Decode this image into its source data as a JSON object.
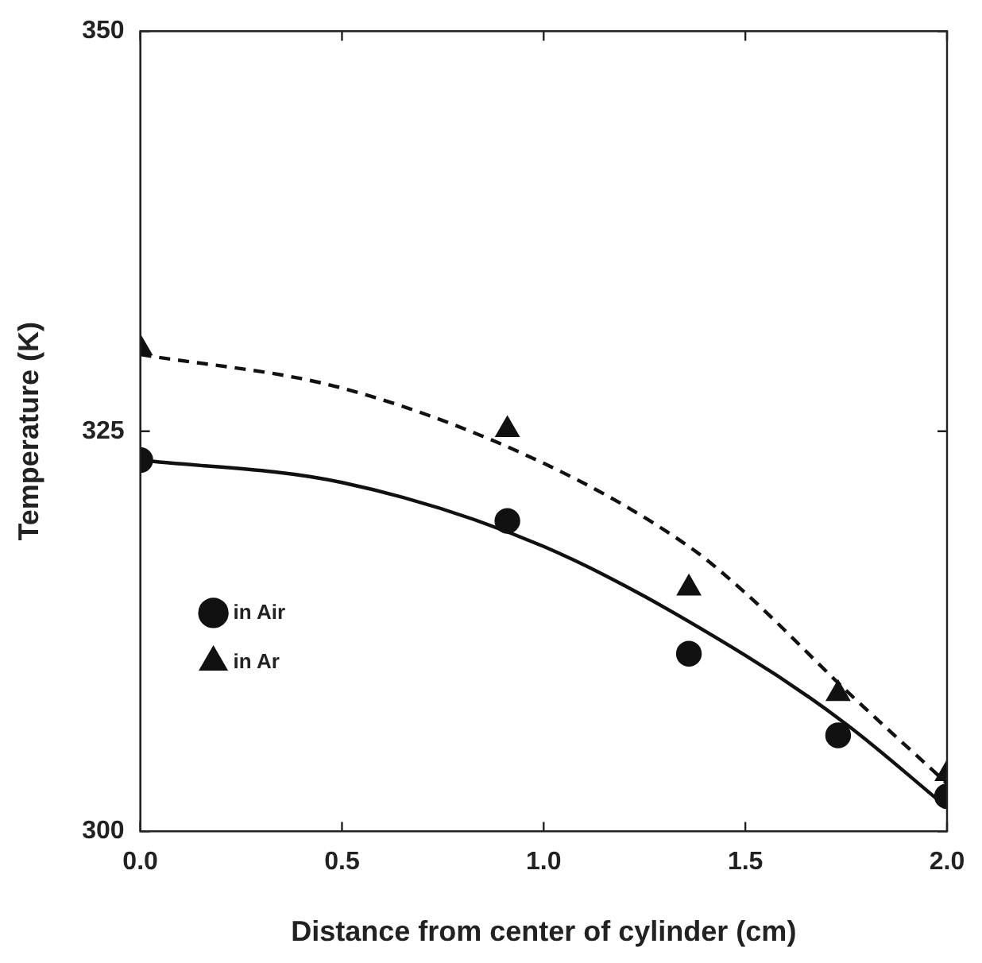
{
  "chart_data": {
    "type": "scatter",
    "xlabel": "Distance from center of cylinder (cm)",
    "ylabel": "Temperature (K)",
    "xlim": [
      0,
      2
    ],
    "xticks": [
      {
        "value": 0,
        "label": "0.0"
      },
      {
        "value": 0.5,
        "label": "0.5"
      },
      {
        "value": 1,
        "label": "1.0"
      },
      {
        "value": 1.5,
        "label": "1.5"
      },
      {
        "value": 2,
        "label": "2.0"
      }
    ],
    "ylim": [
      300,
      350
    ],
    "yticks": [
      300,
      325,
      350
    ],
    "grid": false,
    "legend": "bottom left",
    "series": [
      {
        "name": "in Air",
        "type": "scatter",
        "marker": "circle",
        "color": "#111111",
        "x": [
          0,
          0.91,
          1.36,
          1.73,
          2.0
        ],
        "values": [
          323.2,
          319.4,
          311.1,
          306.0,
          302.2
        ]
      },
      {
        "name": "in Ar",
        "type": "scatter",
        "marker": "triangle",
        "color": "#111111",
        "x": [
          0,
          0.91,
          1.36,
          1.73,
          2.0
        ],
        "values": [
          330.2,
          325.1,
          315.2,
          308.6,
          303.6
        ]
      },
      {
        "type": "line",
        "marker": "none",
        "line_style": "solid",
        "color": "#111111",
        "x": [
          0,
          0.5,
          1.0,
          1.5,
          1.75,
          2.0
        ],
        "values": [
          323.2,
          321.8,
          317.8,
          311.0,
          306.7,
          301.5
        ]
      },
      {
        "type": "line",
        "marker": "none",
        "line_style": "dashed",
        "color": "#111111",
        "x": [
          0,
          0.5,
          1.0,
          1.36,
          1.5,
          1.75,
          2.0
        ],
        "values": [
          329.8,
          327.7,
          323.0,
          317.8,
          314.9,
          308.8,
          303.0
        ]
      }
    ]
  }
}
